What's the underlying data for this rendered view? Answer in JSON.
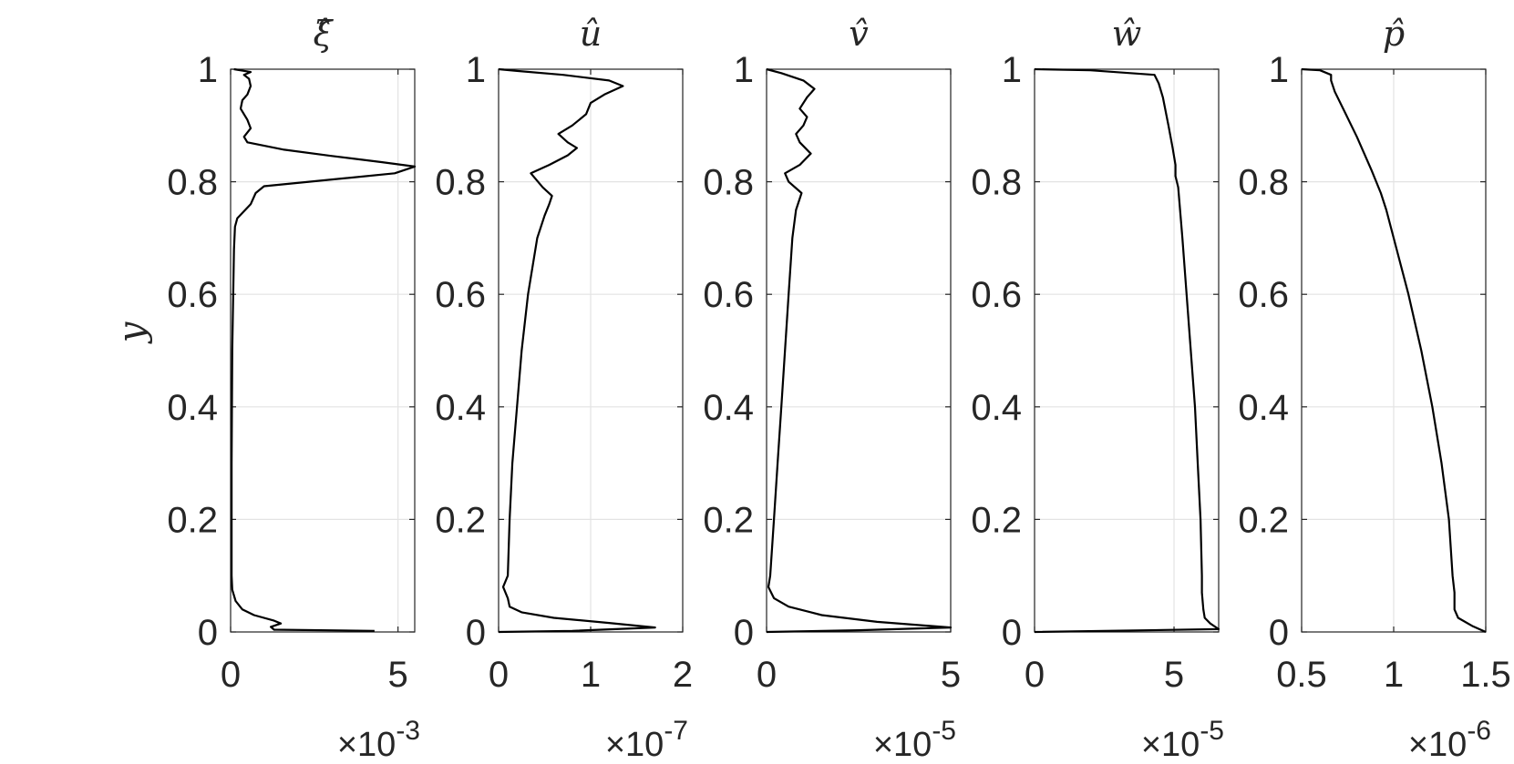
{
  "chart_data": [
    {
      "type": "line",
      "title": "ξ̂",
      "ylabel": "y",
      "xlim": [
        0,
        5.5
      ],
      "ylim": [
        0,
        1
      ],
      "xticks": [
        0,
        5
      ],
      "yticks": [
        0,
        0.2,
        0.4,
        0.6,
        0.8,
        1
      ],
      "x_multiplier": "×10-3",
      "grid": true,
      "series": [
        {
          "color": "#000000",
          "points": [
            [
              4.3,
              0.002
            ],
            [
              1.3,
              0.004
            ],
            [
              1.2,
              0.009
            ],
            [
              1.5,
              0.015
            ],
            [
              1.3,
              0.02
            ],
            [
              0.7,
              0.03
            ],
            [
              0.35,
              0.04
            ],
            [
              0.15,
              0.055
            ],
            [
              0.05,
              0.075
            ],
            [
              0.03,
              0.1
            ],
            [
              0.03,
              0.3
            ],
            [
              0.05,
              0.5
            ],
            [
              0.1,
              0.68
            ],
            [
              0.13,
              0.72
            ],
            [
              0.2,
              0.735
            ],
            [
              0.6,
              0.76
            ],
            [
              0.75,
              0.78
            ],
            [
              1.0,
              0.792
            ],
            [
              3.2,
              0.805
            ],
            [
              4.9,
              0.815
            ],
            [
              5.5,
              0.827
            ],
            [
              4.5,
              0.835
            ],
            [
              3.0,
              0.846
            ],
            [
              1.6,
              0.857
            ],
            [
              0.5,
              0.87
            ],
            [
              0.4,
              0.88
            ],
            [
              0.6,
              0.895
            ],
            [
              0.5,
              0.91
            ],
            [
              0.3,
              0.93
            ],
            [
              0.35,
              0.945
            ],
            [
              0.5,
              0.955
            ],
            [
              0.6,
              0.97
            ],
            [
              0.55,
              0.983
            ],
            [
              0.4,
              0.99
            ],
            [
              0.6,
              0.995
            ],
            [
              0.1,
              1.0
            ]
          ]
        }
      ]
    },
    {
      "type": "line",
      "title": "û",
      "xlim": [
        0,
        2
      ],
      "ylim": [
        0,
        1
      ],
      "xticks": [
        0,
        1,
        2
      ],
      "yticks": [
        0,
        0.2,
        0.4,
        0.6,
        0.8,
        1
      ],
      "x_multiplier": "×10-7",
      "grid": true,
      "series": [
        {
          "color": "#000000",
          "points": [
            [
              0.0,
              0.0
            ],
            [
              0.8,
              0.002
            ],
            [
              1.7,
              0.008
            ],
            [
              1.2,
              0.016
            ],
            [
              0.6,
              0.025
            ],
            [
              0.25,
              0.035
            ],
            [
              0.12,
              0.045
            ],
            [
              0.1,
              0.06
            ],
            [
              0.05,
              0.08
            ],
            [
              0.1,
              0.1
            ],
            [
              0.12,
              0.2
            ],
            [
              0.15,
              0.3
            ],
            [
              0.2,
              0.4
            ],
            [
              0.25,
              0.5
            ],
            [
              0.32,
              0.6
            ],
            [
              0.42,
              0.7
            ],
            [
              0.5,
              0.74
            ],
            [
              0.55,
              0.76
            ],
            [
              0.58,
              0.775
            ],
            [
              0.48,
              0.79
            ],
            [
              0.35,
              0.815
            ],
            [
              0.55,
              0.83
            ],
            [
              0.75,
              0.847
            ],
            [
              0.85,
              0.86
            ],
            [
              0.75,
              0.87
            ],
            [
              0.65,
              0.885
            ],
            [
              0.8,
              0.9
            ],
            [
              0.95,
              0.92
            ],
            [
              1.0,
              0.94
            ],
            [
              1.15,
              0.955
            ],
            [
              1.35,
              0.97
            ],
            [
              1.2,
              0.98
            ],
            [
              0.7,
              0.99
            ],
            [
              0.2,
              0.997
            ],
            [
              0.0,
              1.0
            ]
          ]
        }
      ]
    },
    {
      "type": "line",
      "title": "v̂",
      "xlim": [
        0,
        5
      ],
      "ylim": [
        0,
        1
      ],
      "xticks": [
        0,
        5
      ],
      "yticks": [
        0,
        0.2,
        0.4,
        0.6,
        0.8,
        1
      ],
      "x_multiplier": "×10-5",
      "grid": true,
      "series": [
        {
          "color": "#000000",
          "points": [
            [
              0.0,
              0.0
            ],
            [
              2.5,
              0.003
            ],
            [
              5.0,
              0.008
            ],
            [
              3.0,
              0.018
            ],
            [
              1.5,
              0.03
            ],
            [
              0.6,
              0.045
            ],
            [
              0.2,
              0.06
            ],
            [
              0.05,
              0.08
            ],
            [
              0.1,
              0.1
            ],
            [
              0.2,
              0.2
            ],
            [
              0.3,
              0.3
            ],
            [
              0.4,
              0.4
            ],
            [
              0.5,
              0.5
            ],
            [
              0.6,
              0.6
            ],
            [
              0.7,
              0.7
            ],
            [
              0.8,
              0.75
            ],
            [
              0.9,
              0.77
            ],
            [
              0.95,
              0.78
            ],
            [
              0.6,
              0.8
            ],
            [
              0.5,
              0.815
            ],
            [
              0.9,
              0.83
            ],
            [
              1.2,
              0.85
            ],
            [
              0.9,
              0.87
            ],
            [
              0.8,
              0.885
            ],
            [
              1.0,
              0.9
            ],
            [
              1.1,
              0.915
            ],
            [
              0.9,
              0.93
            ],
            [
              1.1,
              0.95
            ],
            [
              1.3,
              0.965
            ],
            [
              1.0,
              0.98
            ],
            [
              0.4,
              0.993
            ],
            [
              0.0,
              1.0
            ]
          ]
        }
      ]
    },
    {
      "type": "line",
      "title": "ŵ",
      "xlim": [
        0,
        6.6
      ],
      "ylim": [
        0,
        1
      ],
      "xticks": [
        0,
        5
      ],
      "yticks": [
        0,
        0.2,
        0.4,
        0.6,
        0.8,
        1
      ],
      "x_multiplier": "×10-5",
      "grid": true,
      "series": [
        {
          "color": "#000000",
          "points": [
            [
              0.0,
              0.0
            ],
            [
              6.6,
              0.005
            ],
            [
              6.3,
              0.015
            ],
            [
              6.1,
              0.025
            ],
            [
              6.05,
              0.04
            ],
            [
              6.0,
              0.07
            ],
            [
              6.0,
              0.1
            ],
            [
              5.95,
              0.2
            ],
            [
              5.85,
              0.3
            ],
            [
              5.75,
              0.4
            ],
            [
              5.6,
              0.5
            ],
            [
              5.45,
              0.6
            ],
            [
              5.3,
              0.7
            ],
            [
              5.15,
              0.79
            ],
            [
              5.05,
              0.81
            ],
            [
              5.05,
              0.83
            ],
            [
              4.95,
              0.86
            ],
            [
              4.8,
              0.9
            ],
            [
              4.6,
              0.95
            ],
            [
              4.45,
              0.975
            ],
            [
              4.3,
              0.99
            ],
            [
              2.0,
              0.998
            ],
            [
              0.0,
              1.0
            ]
          ]
        }
      ]
    },
    {
      "type": "line",
      "title": "p̂",
      "xlim": [
        0.5,
        1.5
      ],
      "ylim": [
        0,
        1
      ],
      "xticks": [
        0.5,
        1,
        1.5
      ],
      "yticks": [
        0,
        0.2,
        0.4,
        0.6,
        0.8,
        1
      ],
      "x_multiplier": "×10-6",
      "grid": true,
      "series": [
        {
          "color": "#000000",
          "points": [
            [
              1.5,
              0.0
            ],
            [
              1.43,
              0.01
            ],
            [
              1.35,
              0.025
            ],
            [
              1.33,
              0.04
            ],
            [
              1.33,
              0.07
            ],
            [
              1.32,
              0.1
            ],
            [
              1.3,
              0.2
            ],
            [
              1.26,
              0.3
            ],
            [
              1.21,
              0.4
            ],
            [
              1.15,
              0.5
            ],
            [
              1.08,
              0.6
            ],
            [
              1.0,
              0.7
            ],
            [
              0.96,
              0.75
            ],
            [
              0.93,
              0.78
            ],
            [
              0.88,
              0.82
            ],
            [
              0.84,
              0.85
            ],
            [
              0.8,
              0.88
            ],
            [
              0.74,
              0.92
            ],
            [
              0.68,
              0.96
            ],
            [
              0.66,
              0.98
            ],
            [
              0.66,
              0.99
            ],
            [
              0.6,
              0.998
            ],
            [
              0.5,
              1.0
            ]
          ]
        }
      ]
    }
  ]
}
